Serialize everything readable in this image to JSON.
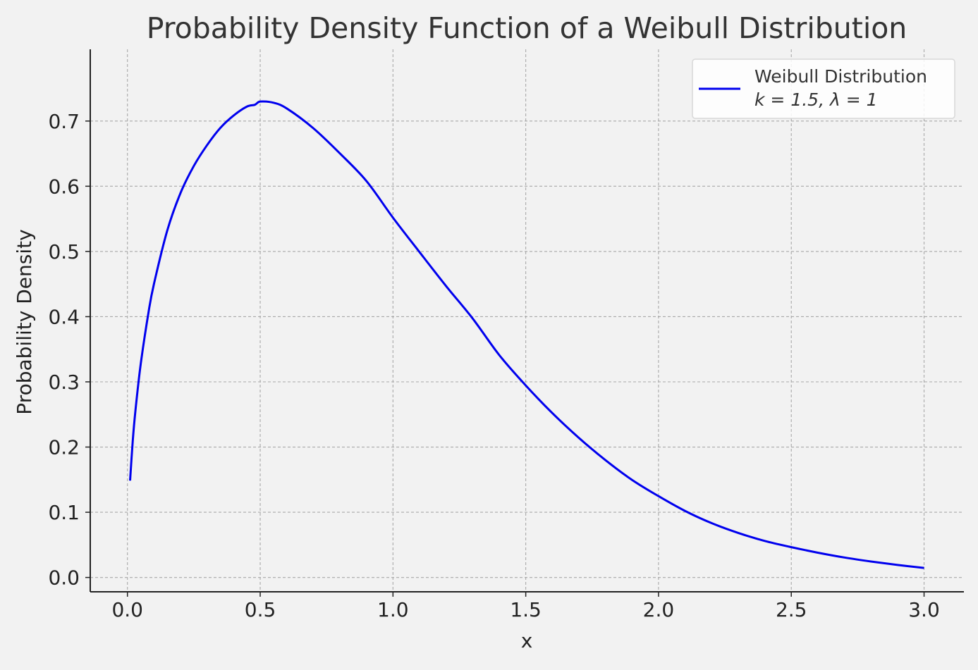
{
  "chart_data": {
    "type": "line",
    "title": "Probability Density Function of a Weibull Distribution",
    "xlabel": "x",
    "ylabel": "Probability Density",
    "xlim": [
      -0.14,
      3.15
    ],
    "ylim": [
      -0.022,
      0.81
    ],
    "grid": true,
    "legend_position": "top-right",
    "x_ticks": [
      0.0,
      0.5,
      1.0,
      1.5,
      2.0,
      2.5,
      3.0
    ],
    "x_tick_labels": [
      "0.0",
      "0.5",
      "1.0",
      "1.5",
      "2.0",
      "2.5",
      "3.0"
    ],
    "y_ticks": [
      0.0,
      0.1,
      0.2,
      0.3,
      0.4,
      0.5,
      0.6,
      0.7
    ],
    "y_tick_labels": [
      "0.0",
      "0.1",
      "0.2",
      "0.3",
      "0.4",
      "0.5",
      "0.6",
      "0.7"
    ],
    "series": [
      {
        "name": "Weibull Distribution",
        "legend_subtitle": "k = 1.5, λ = 1",
        "color": "#0000ee",
        "x": [
          0.01,
          0.02,
          0.03,
          0.05,
          0.08,
          0.1,
          0.15,
          0.2,
          0.25,
          0.3,
          0.35,
          0.4,
          0.45,
          0.48,
          0.5,
          0.55,
          0.6,
          0.7,
          0.8,
          0.9,
          1.0,
          1.1,
          1.2,
          1.3,
          1.4,
          1.5,
          1.6,
          1.7,
          1.8,
          1.9,
          2.0,
          2.1,
          2.2,
          2.3,
          2.4,
          2.5,
          2.6,
          2.7,
          2.8,
          2.9,
          3.0
        ],
        "y": [
          0.1485,
          0.2093,
          0.2553,
          0.3272,
          0.4081,
          0.4504,
          0.5321,
          0.5897,
          0.6311,
          0.6631,
          0.6895,
          0.7085,
          0.7222,
          0.725,
          0.7299,
          0.7281,
          0.7193,
          0.689,
          0.6504,
          0.608,
          0.5518,
          0.499,
          0.4469,
          0.3972,
          0.3412,
          0.2945,
          0.2521,
          0.2141,
          0.18,
          0.1497,
          0.1247,
          0.102,
          0.0833,
          0.0683,
          0.056,
          0.0465,
          0.038,
          0.0306,
          0.0245,
          0.0192,
          0.0146
        ]
      }
    ]
  }
}
